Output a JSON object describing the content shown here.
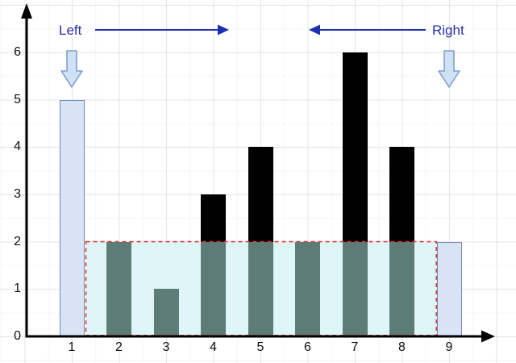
{
  "chart_data": {
    "type": "bar",
    "title": "",
    "xlabel": "",
    "ylabel": "",
    "x": [
      1,
      2,
      3,
      4,
      5,
      6,
      7,
      8,
      9
    ],
    "heights": [
      5,
      2,
      1,
      3,
      4,
      2,
      6,
      4,
      2
    ],
    "xticks": [
      "1",
      "2",
      "3",
      "4",
      "5",
      "6",
      "7",
      "8",
      "9"
    ],
    "yticks": [
      "0",
      "1",
      "2",
      "3",
      "4",
      "5",
      "6"
    ],
    "xlim": [
      0,
      9.9
    ],
    "ylim": [
      0,
      7
    ],
    "grid": true,
    "legend_position": "none",
    "water_level": 2,
    "water_region": {
      "from_x": 1.3,
      "to_x": 8.73,
      "level": 2
    },
    "left_pointer_x": 1,
    "right_pointer_x": 9
  },
  "annotations": {
    "left_label": "Left",
    "right_label": "Right"
  },
  "colors": {
    "pointer_bar_fill": "#d8e4f6",
    "pointer_bar_border": "#6e87b4",
    "submerged_bar": "#5d7b77",
    "above_water_bar": "#000000",
    "water_fill": "#dff6f8",
    "water_border": "#e03a30",
    "annotation_text": "#2a2fa8",
    "annotation_arrow": "#1c2fb0",
    "pointer_arrow_fill": "#cfe1f4",
    "pointer_arrow_stroke": "#7e9fcc",
    "axis": "#000000",
    "tick_label": "#111111"
  }
}
